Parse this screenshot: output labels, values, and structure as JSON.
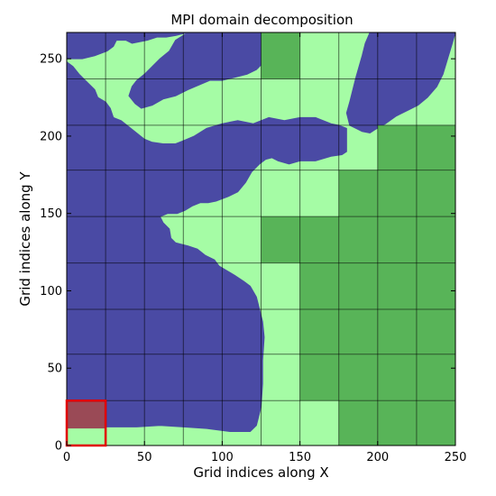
{
  "chart_data": {
    "type": "heatmap",
    "title": "MPI domain decomposition",
    "xlabel": "Grid indices along X",
    "ylabel": "Grid indices along Y",
    "xlim": [
      0,
      250
    ],
    "ylim": [
      0,
      267
    ],
    "xticks": [
      0,
      50,
      100,
      150,
      200,
      250
    ],
    "yticks": [
      0,
      50,
      100,
      150,
      200,
      250
    ],
    "x_block_edges": [
      0,
      25,
      50,
      75,
      100,
      125,
      150,
      175,
      200,
      225,
      250
    ],
    "y_block_edges": [
      0,
      29,
      59,
      88,
      118,
      148,
      178,
      207,
      237,
      267
    ],
    "grid": true,
    "colors": {
      "sea": "#4a4aa4",
      "land": "#a5fca5",
      "land_only_block": "#58b458",
      "block_lines": "#000000",
      "highlight_box": "#e00000",
      "highlight_fill": "#9a4a56"
    },
    "land_only_blocks": [
      [
        5,
        8
      ],
      [
        7,
        0
      ],
      [
        8,
        0
      ],
      [
        9,
        0
      ],
      [
        6,
        1
      ],
      [
        7,
        1
      ],
      [
        8,
        1
      ],
      [
        9,
        1
      ],
      [
        6,
        2
      ],
      [
        7,
        2
      ],
      [
        8,
        2
      ],
      [
        9,
        2
      ],
      [
        6,
        3
      ],
      [
        7,
        3
      ],
      [
        8,
        3
      ],
      [
        9,
        3
      ],
      [
        5,
        4
      ],
      [
        6,
        4
      ],
      [
        7,
        4
      ],
      [
        8,
        4
      ],
      [
        9,
        4
      ],
      [
        7,
        5
      ],
      [
        8,
        5
      ],
      [
        9,
        5
      ],
      [
        8,
        6
      ],
      [
        9,
        6
      ]
    ],
    "highlighted_block": [
      0,
      0
    ]
  }
}
